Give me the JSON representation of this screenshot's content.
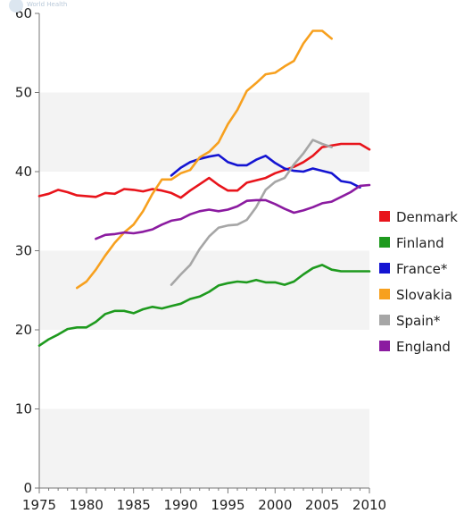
{
  "chart_data": {
    "type": "line",
    "watermark": "World Health",
    "xlim": [
      1975,
      2010
    ],
    "ylim": [
      0,
      60
    ],
    "x_ticks": [
      "1975",
      "1980",
      "1985",
      "1990",
      "1995",
      "2000",
      "2005",
      "2010"
    ],
    "y_ticks": [
      "0",
      "10",
      "20",
      "30",
      "40",
      "50",
      "60"
    ],
    "grid": "alternating horizontal bands",
    "legend_position": "right",
    "series": [
      {
        "name": "Denmark",
        "color": "#e8141b",
        "points": [
          [
            1975,
            36.9
          ],
          [
            1976,
            37.2
          ],
          [
            1977,
            37.7
          ],
          [
            1978,
            37.4
          ],
          [
            1979,
            37.0
          ],
          [
            1980,
            36.9
          ],
          [
            1981,
            36.8
          ],
          [
            1982,
            37.3
          ],
          [
            1983,
            37.2
          ],
          [
            1984,
            37.8
          ],
          [
            1985,
            37.7
          ],
          [
            1986,
            37.5
          ],
          [
            1987,
            37.8
          ],
          [
            1988,
            37.6
          ],
          [
            1989,
            37.3
          ],
          [
            1990,
            36.7
          ],
          [
            1991,
            37.6
          ],
          [
            1992,
            38.4
          ],
          [
            1993,
            39.2
          ],
          [
            1994,
            38.3
          ],
          [
            1995,
            37.6
          ],
          [
            1996,
            37.6
          ],
          [
            1997,
            38.6
          ],
          [
            1998,
            38.9
          ],
          [
            1999,
            39.2
          ],
          [
            2000,
            39.8
          ],
          [
            2001,
            40.2
          ],
          [
            2002,
            40.6
          ],
          [
            2003,
            41.2
          ],
          [
            2004,
            42.0
          ],
          [
            2005,
            43.1
          ],
          [
            2006,
            43.3
          ],
          [
            2007,
            43.5
          ],
          [
            2008,
            43.5
          ],
          [
            2009,
            43.5
          ],
          [
            2010,
            42.8
          ]
        ]
      },
      {
        "name": "Finland",
        "color": "#1e9a1e",
        "points": [
          [
            1975,
            18.0
          ],
          [
            1976,
            18.8
          ],
          [
            1977,
            19.4
          ],
          [
            1978,
            20.1
          ],
          [
            1979,
            20.3
          ],
          [
            1980,
            20.3
          ],
          [
            1981,
            21.0
          ],
          [
            1982,
            22.0
          ],
          [
            1983,
            22.4
          ],
          [
            1984,
            22.4
          ],
          [
            1985,
            22.1
          ],
          [
            1986,
            22.6
          ],
          [
            1987,
            22.9
          ],
          [
            1988,
            22.7
          ],
          [
            1989,
            23.0
          ],
          [
            1990,
            23.3
          ],
          [
            1991,
            23.9
          ],
          [
            1992,
            24.2
          ],
          [
            1993,
            24.8
          ],
          [
            1994,
            25.6
          ],
          [
            1995,
            25.9
          ],
          [
            1996,
            26.1
          ],
          [
            1997,
            26.0
          ],
          [
            1998,
            26.3
          ],
          [
            1999,
            26.0
          ],
          [
            2000,
            26.0
          ],
          [
            2001,
            25.7
          ],
          [
            2002,
            26.1
          ],
          [
            2003,
            27.0
          ],
          [
            2004,
            27.8
          ],
          [
            2005,
            28.2
          ],
          [
            2006,
            27.6
          ],
          [
            2007,
            27.4
          ],
          [
            2008,
            27.4
          ],
          [
            2009,
            27.4
          ],
          [
            2010,
            27.4
          ]
        ]
      },
      {
        "name": "France*",
        "color": "#1414d2",
        "points": [
          [
            1989,
            39.5
          ],
          [
            1990,
            40.5
          ],
          [
            1991,
            41.2
          ],
          [
            1992,
            41.6
          ],
          [
            1993,
            41.9
          ],
          [
            1994,
            42.1
          ],
          [
            1995,
            41.2
          ],
          [
            1996,
            40.8
          ],
          [
            1997,
            40.8
          ],
          [
            1998,
            41.5
          ],
          [
            1999,
            42.0
          ],
          [
            2000,
            41.1
          ],
          [
            2001,
            40.4
          ],
          [
            2002,
            40.1
          ],
          [
            2003,
            40.0
          ],
          [
            2004,
            40.4
          ],
          [
            2005,
            40.1
          ],
          [
            2006,
            39.8
          ],
          [
            2007,
            38.8
          ],
          [
            2008,
            38.6
          ],
          [
            2009,
            38.0
          ]
        ]
      },
      {
        "name": "Slovakia",
        "color": "#f7a01e",
        "points": [
          [
            1979,
            25.3
          ],
          [
            1980,
            26.1
          ],
          [
            1981,
            27.6
          ],
          [
            1982,
            29.4
          ],
          [
            1983,
            31.0
          ],
          [
            1984,
            32.3
          ],
          [
            1985,
            33.3
          ],
          [
            1986,
            35.0
          ],
          [
            1987,
            37.2
          ],
          [
            1988,
            39.0
          ],
          [
            1989,
            39.0
          ],
          [
            1990,
            39.8
          ],
          [
            1991,
            40.2
          ],
          [
            1992,
            41.8
          ],
          [
            1993,
            42.5
          ],
          [
            1994,
            43.7
          ],
          [
            1995,
            46.0
          ],
          [
            1996,
            47.8
          ],
          [
            1997,
            50.2
          ],
          [
            1998,
            51.2
          ],
          [
            1999,
            52.3
          ],
          [
            2000,
            52.5
          ],
          [
            2001,
            53.3
          ],
          [
            2002,
            54.0
          ],
          [
            2003,
            56.2
          ],
          [
            2004,
            57.8
          ],
          [
            2005,
            57.8
          ],
          [
            2006,
            56.8
          ]
        ]
      },
      {
        "name": "Spain*",
        "color": "#a6a6a6",
        "points": [
          [
            1989,
            25.7
          ],
          [
            1990,
            27.0
          ],
          [
            1991,
            28.2
          ],
          [
            1992,
            30.2
          ],
          [
            1993,
            31.8
          ],
          [
            1994,
            32.9
          ],
          [
            1995,
            33.2
          ],
          [
            1996,
            33.3
          ],
          [
            1997,
            33.9
          ],
          [
            1998,
            35.5
          ],
          [
            1999,
            37.7
          ],
          [
            2000,
            38.7
          ],
          [
            2001,
            39.2
          ],
          [
            2002,
            40.9
          ],
          [
            2003,
            42.3
          ],
          [
            2004,
            44.0
          ],
          [
            2005,
            43.5
          ],
          [
            2006,
            43.1
          ]
        ]
      },
      {
        "name": "England",
        "color": "#8b1ba0",
        "points": [
          [
            1981,
            31.5
          ],
          [
            1982,
            32.0
          ],
          [
            1983,
            32.1
          ],
          [
            1984,
            32.3
          ],
          [
            1985,
            32.2
          ],
          [
            1986,
            32.4
          ],
          [
            1987,
            32.7
          ],
          [
            1988,
            33.3
          ],
          [
            1989,
            33.8
          ],
          [
            1990,
            34.0
          ],
          [
            1991,
            34.6
          ],
          [
            1992,
            35.0
          ],
          [
            1993,
            35.2
          ],
          [
            1994,
            35.0
          ],
          [
            1995,
            35.2
          ],
          [
            1996,
            35.6
          ],
          [
            1997,
            36.3
          ],
          [
            1998,
            36.4
          ],
          [
            1999,
            36.4
          ],
          [
            2000,
            35.9
          ],
          [
            2001,
            35.3
          ],
          [
            2002,
            34.8
          ],
          [
            2003,
            35.1
          ],
          [
            2004,
            35.5
          ],
          [
            2005,
            36.0
          ],
          [
            2006,
            36.2
          ],
          [
            2007,
            36.8
          ],
          [
            2008,
            37.4
          ],
          [
            2009,
            38.2
          ],
          [
            2010,
            38.3
          ]
        ]
      }
    ]
  }
}
